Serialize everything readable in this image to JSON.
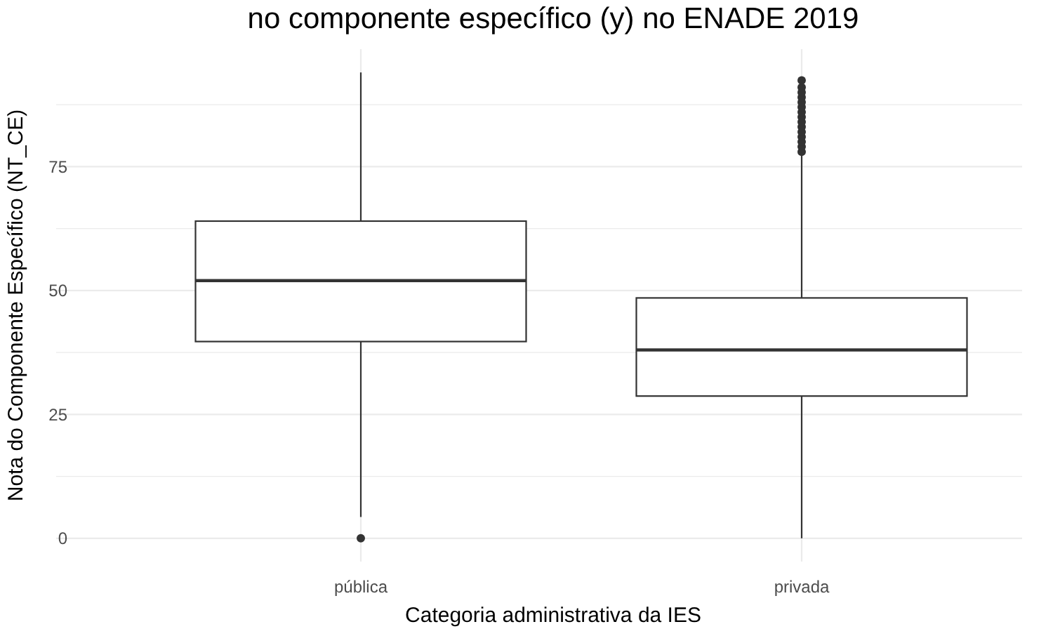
{
  "chart_data": {
    "type": "box",
    "title": "no componente específico (y) no ENADE 2019",
    "xlabel": "Categoria administrativa da IES",
    "ylabel": "Nota do Componente Específico (NT_CE)",
    "categories": [
      "pública",
      "privada"
    ],
    "boxes": [
      {
        "low": 4.3,
        "q1": 39.7,
        "median": 52,
        "q3": 64,
        "high": 94,
        "outliers": [
          0
        ]
      },
      {
        "low": 0,
        "q1": 28.7,
        "median": 38,
        "q3": 48.5,
        "high": 77.6,
        "outliers": [
          78,
          79,
          80,
          81,
          82,
          83,
          84,
          85,
          86,
          87,
          88,
          89,
          90,
          91,
          92.4
        ]
      }
    ],
    "color": "#333333",
    "ylim": [
      -4.7,
      98.7
    ],
    "yticks": [
      0,
      25,
      50,
      75
    ],
    "grid": true
  }
}
